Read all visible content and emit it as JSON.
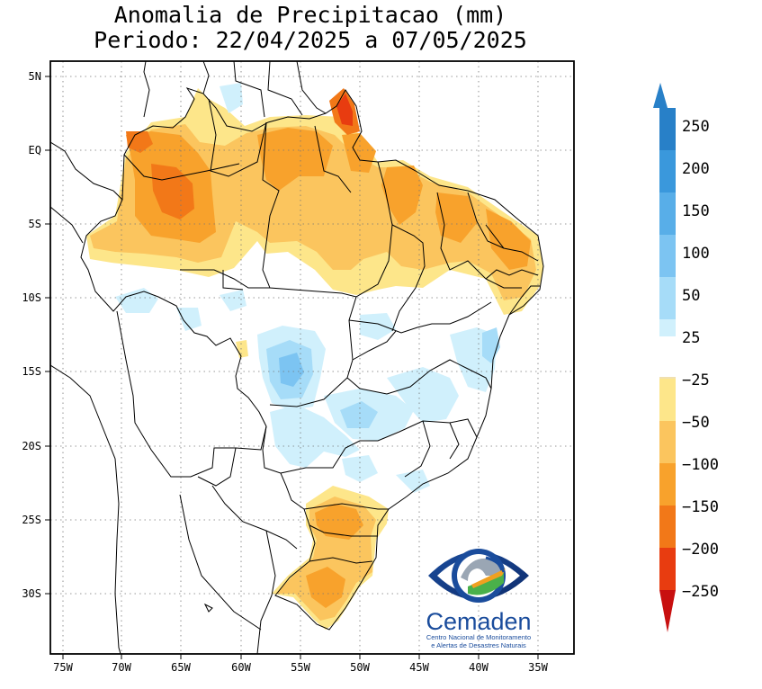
{
  "title": {
    "line1": "Anomalia de Precipitacao (mm)",
    "line2": "Periodo: 22/04/2025 a 07/05/2025"
  },
  "axes": {
    "lat_labels": [
      "5N",
      "EQ",
      "5S",
      "10S",
      "15S",
      "20S",
      "25S",
      "30S"
    ],
    "lon_labels": [
      "75W",
      "70W",
      "65W",
      "60W",
      "55W",
      "50W",
      "45W",
      "40W",
      "35W"
    ]
  },
  "colorbar": {
    "labels": [
      "250",
      "200",
      "150",
      "100",
      "50",
      "25",
      "−25",
      "−50",
      "−100",
      "−150",
      "−200",
      "−250"
    ],
    "colors": [
      "#2880c8",
      "#3a98dc",
      "#58aee8",
      "#7cc4f2",
      "#a6dcf8",
      "#d0f0fc",
      "#ffffff",
      "#fde68a",
      "#fbc55e",
      "#f8a22c",
      "#f27818",
      "#e83c10",
      "#c81010"
    ]
  },
  "logo": {
    "name": "Cemaden",
    "subtitle_line1": "Centro Nacional de Monitoramento",
    "subtitle_line2": "e Alertas de Desastres Naturais"
  }
}
